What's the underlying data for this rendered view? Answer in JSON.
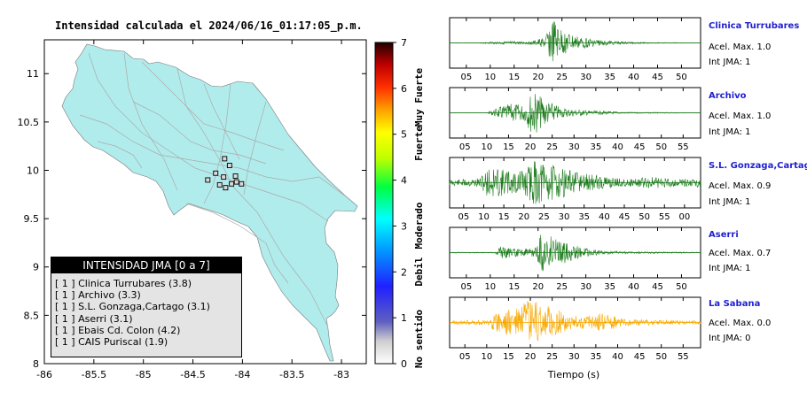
{
  "title": "Intensidad calculada el 2024/06/16_01:17:05_p.m.",
  "map": {
    "xticks": [
      "-86",
      "-85.5",
      "-85",
      "-84.5",
      "-84",
      "-83.5",
      "-83"
    ],
    "yticks": [
      "11",
      "10.5",
      "10",
      "9.5",
      "9",
      "8.5",
      "8"
    ],
    "xlim": [
      -86,
      -82.75
    ],
    "ylim": [
      8,
      11.35
    ],
    "land_color": "#b1ecec",
    "stations": [
      {
        "lon": -84.18,
        "lat": 10.12
      },
      {
        "lon": -84.13,
        "lat": 10.05
      },
      {
        "lon": -84.27,
        "lat": 9.97
      },
      {
        "lon": -84.19,
        "lat": 9.93
      },
      {
        "lon": -84.07,
        "lat": 9.94
      },
      {
        "lon": -84.35,
        "lat": 9.9
      },
      {
        "lon": -84.06,
        "lat": 9.88
      },
      {
        "lon": -84.11,
        "lat": 9.86
      },
      {
        "lon": -84.01,
        "lat": 9.86
      },
      {
        "lon": -84.23,
        "lat": 9.85
      },
      {
        "lon": -84.17,
        "lat": 9.82
      }
    ]
  },
  "legend": {
    "title": "INTENSIDAD JMA [0 a 7]",
    "items": [
      "[ 1 ]  Clinica Turrubares (3.8)",
      "[ 1 ]  Archivo (3.3)",
      "[ 1 ]  S.L. Gonzaga,Cartago (3.1)",
      "[ 1 ]  Aserri (3.1)",
      "[ 1 ]  Ebais Cd. Colon (4.2)",
      "[ 1 ]  CAIS Puriscal (1.9)"
    ]
  },
  "colorbar": {
    "ticks": [
      "7",
      "6",
      "5",
      "4",
      "3",
      "2",
      "1",
      "0"
    ],
    "labels": [
      "Muy Fuerte",
      "Fuerte",
      "Moderado",
      "Debil",
      "No sentido"
    ]
  },
  "traces": [
    {
      "name": "Clinica Turrubares",
      "acc": "Acel. Max. 1.0",
      "jma": "Int JMA: 1",
      "color": "#1a7a1a",
      "ticks": [
        "05",
        "10",
        "15",
        "20",
        "25",
        "30",
        "35",
        "40",
        "45",
        "50"
      ],
      "seed": 3,
      "envelope": [
        [
          0.12,
          0.02
        ],
        [
          0.19,
          0.06
        ],
        [
          0.33,
          0.07
        ],
        [
          0.38,
          0.25
        ],
        [
          0.41,
          1.0
        ],
        [
          0.44,
          0.6
        ],
        [
          0.5,
          0.3
        ],
        [
          0.6,
          0.12
        ],
        [
          0.7,
          0.05
        ],
        [
          0.8,
          0.02
        ],
        [
          1.0,
          0.01
        ]
      ]
    },
    {
      "name": "Archivo",
      "acc": "Acel. Max. 1.0",
      "jma": "Int JMA: 1",
      "color": "#1a7a1a",
      "ticks": [
        "05",
        "10",
        "15",
        "20",
        "25",
        "30",
        "35",
        "40",
        "45",
        "50",
        "55"
      ],
      "seed": 7,
      "envelope": [
        [
          0.15,
          0.02
        ],
        [
          0.2,
          0.25
        ],
        [
          0.25,
          0.4
        ],
        [
          0.3,
          0.35
        ],
        [
          0.33,
          1.0
        ],
        [
          0.38,
          0.55
        ],
        [
          0.45,
          0.2
        ],
        [
          0.55,
          0.1
        ],
        [
          0.7,
          0.03
        ],
        [
          1.0,
          0.01
        ]
      ]
    },
    {
      "name": "S.L. Gonzaga,Cartago",
      "acc": "Acel. Max. 0.9",
      "jma": "Int JMA: 1",
      "color": "#1a7a1a",
      "ticks": [
        "05",
        "10",
        "15",
        "20",
        "25",
        "30",
        "35",
        "40",
        "45",
        "50",
        "55",
        "00"
      ],
      "seed": 11,
      "envelope": [
        [
          0.0,
          0.12
        ],
        [
          0.12,
          0.2
        ],
        [
          0.16,
          0.7
        ],
        [
          0.22,
          0.55
        ],
        [
          0.3,
          0.6
        ],
        [
          0.34,
          1.0
        ],
        [
          0.4,
          0.8
        ],
        [
          0.5,
          0.45
        ],
        [
          0.6,
          0.3
        ],
        [
          0.7,
          0.15
        ],
        [
          0.8,
          0.25
        ],
        [
          0.9,
          0.18
        ],
        [
          1.0,
          0.2
        ]
      ]
    },
    {
      "name": "Aserri",
      "acc": "Acel. Max. 0.7",
      "jma": "Int JMA: 1",
      "color": "#1a7a1a",
      "ticks": [
        "05",
        "10",
        "15",
        "20",
        "25",
        "30",
        "35",
        "40",
        "45",
        "50"
      ],
      "seed": 19,
      "envelope": [
        [
          0.18,
          0.02
        ],
        [
          0.2,
          0.25
        ],
        [
          0.28,
          0.15
        ],
        [
          0.34,
          0.2
        ],
        [
          0.37,
          1.0
        ],
        [
          0.42,
          0.6
        ],
        [
          0.5,
          0.3
        ],
        [
          0.6,
          0.08
        ],
        [
          0.75,
          0.04
        ],
        [
          1.0,
          0.02
        ]
      ]
    },
    {
      "name": "La Sabana",
      "acc": "Acel. Max. 0.0",
      "jma": "Int JMA: 0",
      "color": "#f7a800",
      "ticks": [
        "05",
        "10",
        "15",
        "20",
        "25",
        "30",
        "35",
        "40",
        "45",
        "50",
        "55"
      ],
      "seed": 23,
      "envelope": [
        [
          0.0,
          0.08
        ],
        [
          0.15,
          0.12
        ],
        [
          0.2,
          0.55
        ],
        [
          0.25,
          0.6
        ],
        [
          0.32,
          1.0
        ],
        [
          0.4,
          0.7
        ],
        [
          0.48,
          0.3
        ],
        [
          0.58,
          0.3
        ],
        [
          0.6,
          0.4
        ],
        [
          0.7,
          0.15
        ],
        [
          0.85,
          0.1
        ],
        [
          1.0,
          0.08
        ]
      ]
    }
  ],
  "xlabel": "Tiempo (s)"
}
